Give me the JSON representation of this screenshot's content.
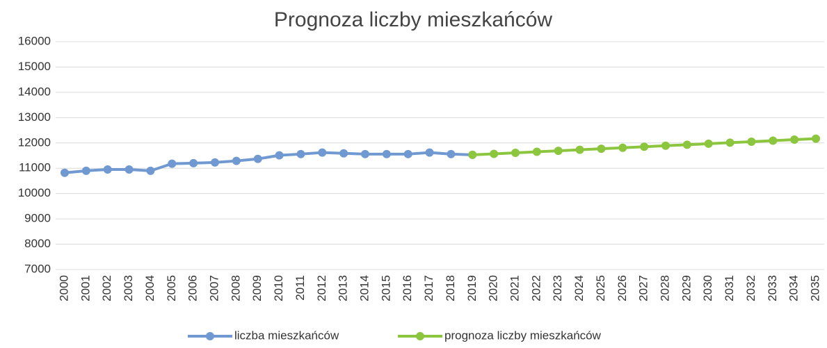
{
  "chart_data": {
    "type": "line",
    "title": "Prognoza liczby mieszkańców",
    "categories": [
      "2000",
      "2001",
      "2002",
      "2003",
      "2004",
      "2005",
      "2006",
      "2007",
      "2008",
      "2009",
      "2010",
      "2011",
      "2012",
      "2013",
      "2014",
      "2015",
      "2016",
      "2017",
      "2018",
      "2019",
      "2020",
      "2021",
      "2022",
      "2023",
      "2024",
      "2025",
      "2026",
      "2027",
      "2028",
      "2029",
      "2030",
      "2031",
      "2032",
      "2033",
      "2034",
      "2035"
    ],
    "series": [
      {
        "name": "liczba mieszkańców",
        "color": "#7099d1",
        "values": [
          10820,
          10900,
          10950,
          10950,
          10900,
          11180,
          11200,
          11230,
          11290,
          11370,
          11510,
          11560,
          11620,
          11590,
          11560,
          11560,
          11560,
          11620,
          11560,
          11530,
          null,
          null,
          null,
          null,
          null,
          null,
          null,
          null,
          null,
          null,
          null,
          null,
          null,
          null,
          null,
          null
        ]
      },
      {
        "name": "prognoza liczby mieszkańców",
        "color": "#8cc63f",
        "values": [
          null,
          null,
          null,
          null,
          null,
          null,
          null,
          null,
          null,
          null,
          null,
          null,
          null,
          null,
          null,
          null,
          null,
          null,
          null,
          11530,
          11570,
          11610,
          11650,
          11690,
          11730,
          11770,
          11810,
          11850,
          11890,
          11930,
          11970,
          12010,
          12050,
          12090,
          12130,
          12170
        ]
      }
    ],
    "ylim": [
      7000,
      16000
    ],
    "yticks": [
      7000,
      8000,
      9000,
      10000,
      11000,
      12000,
      13000,
      14000,
      15000,
      16000
    ],
    "grid": true,
    "legend": "bottom"
  }
}
